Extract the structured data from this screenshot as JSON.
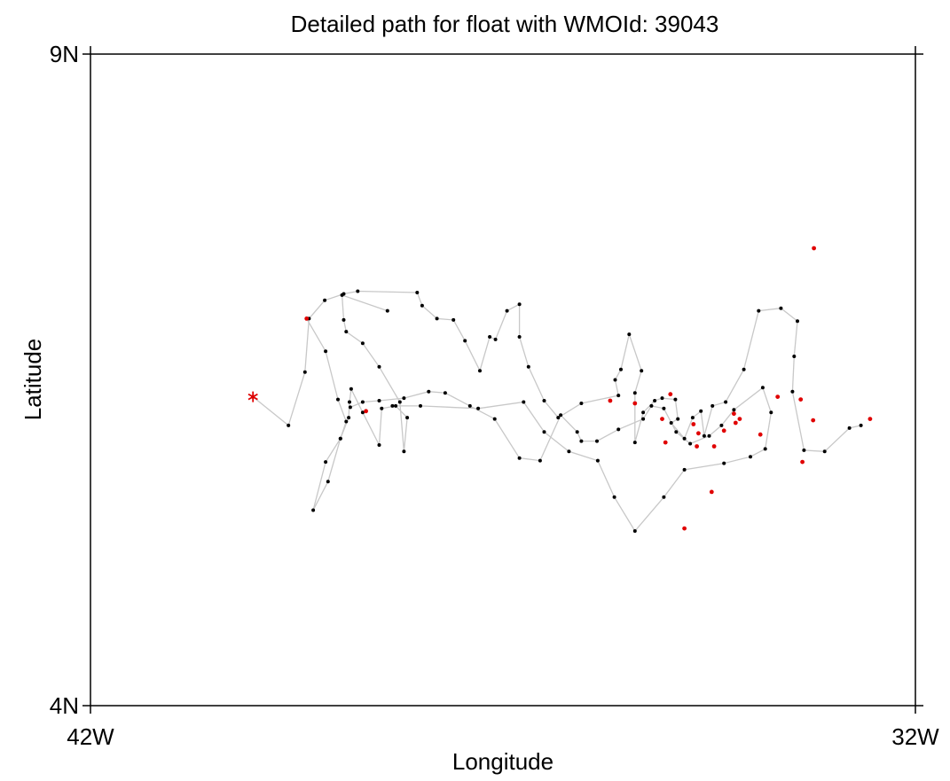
{
  "chart_data": {
    "type": "scatter",
    "title": "Detailed path for float with WMOId: 39043",
    "xlabel": "Longitude",
    "ylabel": "Latitude",
    "xlim": [
      -42,
      -32
    ],
    "ylim": [
      4,
      9
    ],
    "x_ticks": [
      {
        "value": -42,
        "label": "42W"
      },
      {
        "value": -32,
        "label": "32W"
      }
    ],
    "y_ticks": [
      {
        "value": 4,
        "label": "4N"
      },
      {
        "value": 9,
        "label": "9N"
      }
    ],
    "grid": false,
    "legend": "none",
    "colors": {
      "path": "#c8c8c8",
      "position": "#000000",
      "highlight": "#e00000",
      "start_marker": "#e00000"
    },
    "start": {
      "lon": -40.03,
      "lat": 6.37
    },
    "track": [
      [
        -40.03,
        6.37
      ],
      [
        -39.6,
        6.15
      ],
      [
        -39.4,
        6.56
      ],
      [
        -39.35,
        6.97
      ],
      [
        -39.16,
        7.11
      ],
      [
        -38.93,
        7.16
      ],
      [
        -38.76,
        7.18
      ],
      [
        -38.04,
        7.17
      ],
      [
        -37.98,
        7.07
      ],
      [
        -37.8,
        6.97
      ],
      [
        -37.6,
        6.96
      ],
      [
        -37.46,
        6.8
      ],
      [
        -37.28,
        6.57
      ],
      [
        -37.16,
        6.83
      ],
      [
        -37.09,
        6.81
      ],
      [
        -36.95,
        7.03
      ],
      [
        -36.8,
        7.08
      ],
      [
        -36.8,
        6.83
      ],
      [
        -36.69,
        6.6
      ],
      [
        -36.5,
        6.34
      ],
      [
        -36.33,
        6.21
      ],
      [
        -36.05,
        6.32
      ],
      [
        -35.6,
        6.38
      ],
      [
        -35.64,
        6.5
      ],
      [
        -35.57,
        6.58
      ],
      [
        -35.47,
        6.85
      ],
      [
        -35.32,
        6.57
      ],
      [
        -35.4,
        6.4
      ],
      [
        -35.4,
        6.02
      ],
      [
        -35.3,
        6.25
      ],
      [
        -35.16,
        6.34
      ],
      [
        -35.07,
        6.36
      ],
      [
        -34.91,
        6.35
      ],
      [
        -34.88,
        6.2
      ],
      [
        -34.96,
        6.17
      ],
      [
        -34.8,
        6.05
      ],
      [
        -34.7,
        6.21
      ],
      [
        -34.6,
        6.26
      ],
      [
        -34.56,
        6.07
      ],
      [
        -34.46,
        6.3
      ],
      [
        -34.3,
        6.33
      ],
      [
        -34.08,
        6.58
      ],
      [
        -33.9,
        7.03
      ],
      [
        -33.63,
        7.05
      ],
      [
        -33.43,
        6.95
      ],
      [
        -33.47,
        6.68
      ],
      [
        -33.49,
        6.41
      ],
      [
        -33.35,
        5.96
      ],
      [
        -33.1,
        5.95
      ],
      [
        -32.8,
        6.13
      ],
      [
        -32.66,
        6.15
      ]
    ],
    "loop_track": [
      [
        -38.85,
        6.29
      ],
      [
        -38.7,
        6.33
      ],
      [
        -38.5,
        6.34
      ],
      [
        -38.2,
        6.36
      ],
      [
        -37.9,
        6.41
      ],
      [
        -37.7,
        6.4
      ],
      [
        -37.4,
        6.3
      ],
      [
        -37.1,
        6.2
      ],
      [
        -36.8,
        5.9
      ],
      [
        -36.55,
        5.88
      ],
      [
        -36.3,
        6.23
      ],
      [
        -36.1,
        6.1
      ],
      [
        -36.05,
        6.03
      ],
      [
        -35.86,
        6.03
      ],
      [
        -35.6,
        6.12
      ],
      [
        -35.3,
        6.2
      ],
      [
        -35.2,
        6.3
      ],
      [
        -35.05,
        6.28
      ],
      [
        -34.9,
        6.1
      ],
      [
        -34.73,
        6.01
      ],
      [
        -34.5,
        6.07
      ],
      [
        -34.35,
        6.15
      ],
      [
        -34.2,
        6.27
      ],
      [
        -33.85,
        6.44
      ],
      [
        -33.75,
        6.25
      ],
      [
        -33.82,
        5.97
      ],
      [
        -34.0,
        5.91
      ],
      [
        -34.32,
        5.86
      ],
      [
        -34.8,
        5.81
      ],
      [
        -35.05,
        5.6
      ],
      [
        -35.4,
        5.34
      ],
      [
        -35.65,
        5.6
      ],
      [
        -35.85,
        5.88
      ],
      [
        -36.2,
        5.95
      ],
      [
        -36.5,
        6.1
      ],
      [
        -36.75,
        6.33
      ],
      [
        -37.3,
        6.28
      ],
      [
        -38.0,
        6.3
      ],
      [
        -38.34,
        6.3
      ]
    ],
    "north_track": [
      [
        -39.38,
        6.97
      ],
      [
        -39.15,
        6.72
      ],
      [
        -39.0,
        6.35
      ],
      [
        -38.9,
        6.18
      ],
      [
        -38.97,
        6.05
      ],
      [
        -39.15,
        5.87
      ],
      [
        -39.3,
        5.5
      ],
      [
        -39.12,
        5.72
      ],
      [
        -38.97,
        6.05
      ],
      [
        -38.87,
        6.21
      ],
      [
        -38.86,
        6.33
      ],
      [
        -38.84,
        6.43
      ],
      [
        -38.7,
        6.25
      ],
      [
        -38.5,
        6.0
      ],
      [
        -38.47,
        6.28
      ],
      [
        -38.3,
        6.3
      ],
      [
        -38.16,
        6.21
      ],
      [
        -38.2,
        5.95
      ],
      [
        -38.25,
        6.33
      ],
      [
        -38.5,
        6.6
      ],
      [
        -38.7,
        6.78
      ],
      [
        -38.9,
        6.87
      ],
      [
        -38.93,
        6.96
      ],
      [
        -38.95,
        7.15
      ],
      [
        -38.4,
        7.03
      ]
    ],
    "highlight_points": [
      [
        -39.38,
        6.97
      ],
      [
        -38.66,
        6.26
      ],
      [
        -35.4,
        6.32
      ],
      [
        -35.07,
        6.2
      ],
      [
        -34.97,
        6.39
      ],
      [
        -34.69,
        6.16
      ],
      [
        -34.63,
        6.09
      ],
      [
        -34.65,
        5.99
      ],
      [
        -34.44,
        5.99
      ],
      [
        -34.32,
        6.11
      ],
      [
        -34.2,
        6.24
      ],
      [
        -34.18,
        6.17
      ],
      [
        -34.13,
        6.2
      ],
      [
        -33.88,
        6.08
      ],
      [
        -33.67,
        6.37
      ],
      [
        -33.39,
        6.35
      ],
      [
        -33.24,
        6.19
      ],
      [
        -33.37,
        5.87
      ],
      [
        -34.47,
        5.64
      ],
      [
        -34.8,
        5.36
      ],
      [
        -33.23,
        7.51
      ],
      [
        -32.55,
        6.2
      ],
      [
        -35.03,
        6.02
      ],
      [
        -35.7,
        6.34
      ]
    ]
  }
}
